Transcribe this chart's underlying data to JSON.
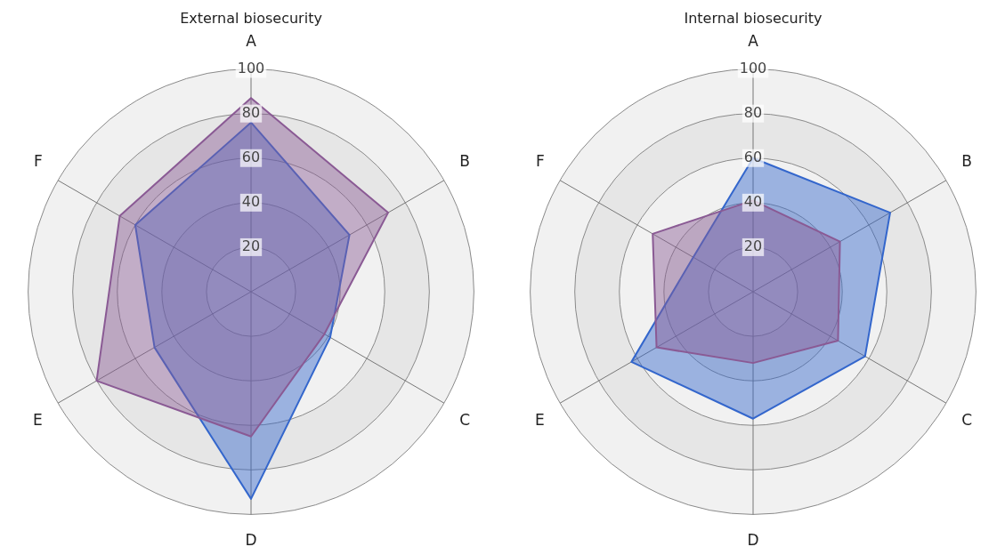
{
  "chart_data": [
    {
      "type": "radar",
      "title": "External biosecurity",
      "categories": [
        "A",
        "B",
        "C",
        "D",
        "E",
        "F"
      ],
      "series": [
        {
          "color": "#8a5a94",
          "values": [
            87,
            71,
            38,
            65,
            80,
            68
          ]
        },
        {
          "color": "#3366cc",
          "values": [
            76,
            51,
            41,
            93,
            50,
            60
          ]
        }
      ],
      "ylim": [
        0,
        100
      ],
      "yticks": [
        20,
        40,
        60,
        80,
        100
      ],
      "grid": true,
      "legend": false,
      "marker": "none"
    },
    {
      "type": "radar",
      "title": "Internal biosecurity",
      "categories": [
        "A",
        "B",
        "C",
        "D",
        "E",
        "F"
      ],
      "series": [
        {
          "color": "#8a5a94",
          "values": [
            41,
            45,
            44,
            32,
            50,
            52
          ]
        },
        {
          "color": "#3366cc",
          "values": [
            60,
            71,
            58,
            57,
            63,
            31
          ]
        }
      ],
      "ylim": [
        0,
        100
      ],
      "yticks": [
        20,
        40,
        60,
        80,
        100
      ],
      "grid": true,
      "legend": false,
      "marker": "none"
    }
  ]
}
